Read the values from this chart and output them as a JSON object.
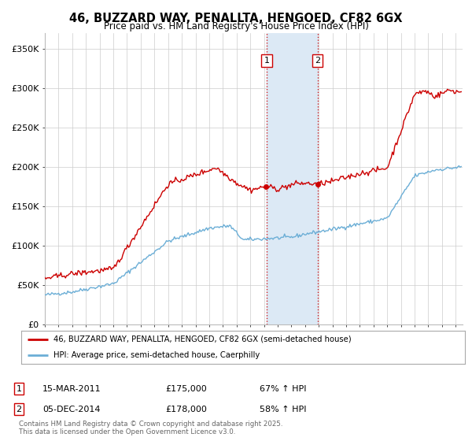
{
  "title": "46, BUZZARD WAY, PENALLTA, HENGOED, CF82 6GX",
  "subtitle": "Price paid vs. HM Land Registry's House Price Index (HPI)",
  "legend_line1": "46, BUZZARD WAY, PENALLTA, HENGOED, CF82 6GX (semi-detached house)",
  "legend_line2": "HPI: Average price, semi-detached house, Caerphilly",
  "footer": "Contains HM Land Registry data © Crown copyright and database right 2025.\nThis data is licensed under the Open Government Licence v3.0.",
  "event1_label": "1",
  "event1_date": "15-MAR-2011",
  "event1_price": "£175,000",
  "event1_hpi": "67% ↑ HPI",
  "event1_year": 2011.2,
  "event2_label": "2",
  "event2_date": "05-DEC-2014",
  "event2_price": "£178,000",
  "event2_hpi": "58% ↑ HPI",
  "event2_year": 2014.92,
  "hpi_color": "#6baed6",
  "price_color": "#cc0000",
  "shading_color": "#dce9f5",
  "grid_color": "#cccccc",
  "background_color": "#ffffff",
  "ylim": [
    0,
    370000
  ],
  "xlim_start": 1995,
  "xlim_end": 2025.5,
  "yticks": [
    0,
    50000,
    100000,
    150000,
    200000,
    250000,
    300000,
    350000
  ],
  "ytick_labels": [
    "£0",
    "£50K",
    "£100K",
    "£150K",
    "£200K",
    "£250K",
    "£300K",
    "£350K"
  ],
  "event1_price_val": 175000,
  "event2_price_val": 178000,
  "title_fontsize": 10.5,
  "subtitle_fontsize": 8.5
}
